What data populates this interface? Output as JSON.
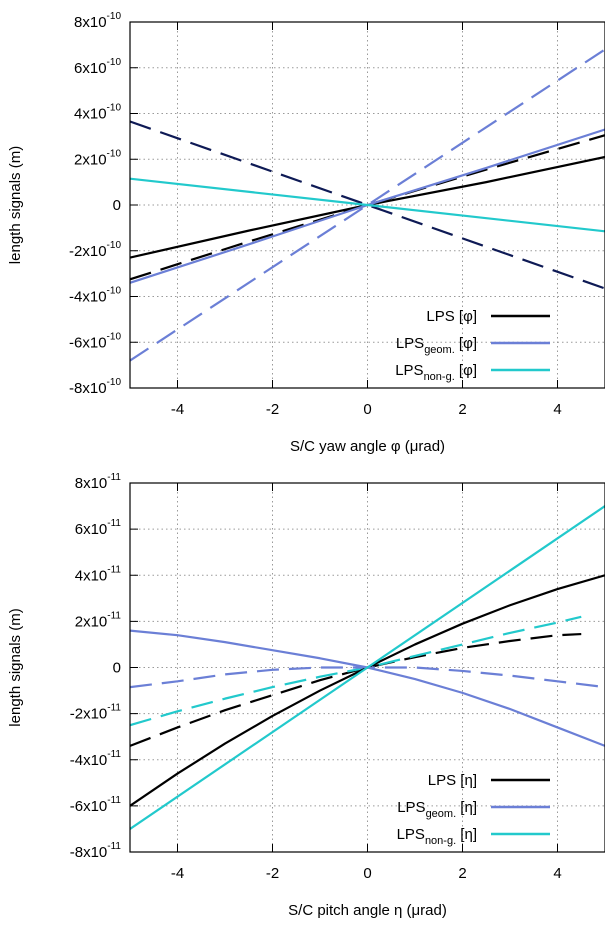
{
  "chart_data": [
    {
      "type": "line",
      "panel": "top",
      "xlabel": "S/C yaw angle φ (μrad)",
      "ylabel": "length signals (m)",
      "xlim": [
        -5,
        5
      ],
      "ylim": [
        -8e-10,
        8e-10
      ],
      "x_ticks": [
        -4,
        -2,
        0,
        2,
        4
      ],
      "x_tick_labels": [
        "-4",
        "-2",
        "0",
        "2",
        "4"
      ],
      "y_ticks": [
        -8e-10,
        -6e-10,
        -4e-10,
        -2e-10,
        0,
        2e-10,
        4e-10,
        6e-10,
        8e-10
      ],
      "y_tick_labels": [
        {
          "mant": "-8x10",
          "exp": "-10"
        },
        {
          "mant": "-6x10",
          "exp": "-10"
        },
        {
          "mant": "-4x10",
          "exp": "-10"
        },
        {
          "mant": "-2x10",
          "exp": "-10"
        },
        {
          "mant": "0",
          "exp": ""
        },
        {
          "mant": "2x10",
          "exp": "-10"
        },
        {
          "mant": "4x10",
          "exp": "-10"
        },
        {
          "mant": "6x10",
          "exp": "-10"
        },
        {
          "mant": "8x10",
          "exp": "-10"
        }
      ],
      "grid": true,
      "legend_position": "bottom-right",
      "series": [
        {
          "name": "LPS",
          "sub": "",
          "tail": " [φ]",
          "color": "#000000",
          "dash": "solid",
          "x": [
            -5,
            -2.5,
            0,
            2.5,
            5
          ],
          "y": [
            -2.3e-10,
            -1.12e-10,
            0,
            1e-10,
            2.1e-10
          ]
        },
        {
          "name": "LPS",
          "sub": "geom.",
          "tail": " [φ]",
          "color": "#6b7fd6",
          "dash": "solid",
          "x": [
            -5,
            -2.5,
            0,
            2.5,
            5
          ],
          "y": [
            -3.4e-10,
            -1.72e-10,
            0,
            1.62e-10,
            3.3e-10
          ]
        },
        {
          "name": "LPS",
          "sub": "non-g.",
          "tail": " [φ]",
          "color": "#22c9cc",
          "dash": "solid",
          "x": [
            -5,
            0,
            5
          ],
          "y": [
            1.15e-10,
            0,
            -1.15e-10
          ]
        },
        {
          "name": "",
          "color": "#000000",
          "dash": "dashed",
          "x": [
            -5,
            -2.5,
            0,
            2.5,
            5
          ],
          "y": [
            -3.25e-10,
            -1.6e-10,
            0,
            1.55e-10,
            3.05e-10
          ]
        },
        {
          "name": "",
          "color": "#6b7fd6",
          "dash": "dashed",
          "x": [
            -5,
            0,
            5
          ],
          "y": [
            -6.8e-10,
            0,
            6.8e-10
          ]
        },
        {
          "name": "",
          "color": "#0e1a55",
          "dash": "dashed",
          "x": [
            -5,
            0,
            5
          ],
          "y": [
            3.65e-10,
            0,
            -3.65e-10
          ]
        }
      ]
    },
    {
      "type": "line",
      "panel": "bottom",
      "xlabel": "S/C pitch angle η (μrad)",
      "ylabel": "length signals (m)",
      "xlim": [
        -5,
        5
      ],
      "ylim": [
        -8e-11,
        8e-11
      ],
      "x_ticks": [
        -4,
        -2,
        0,
        2,
        4
      ],
      "x_tick_labels": [
        "-4",
        "-2",
        "0",
        "2",
        "4"
      ],
      "y_ticks": [
        -8e-11,
        -6e-11,
        -4e-11,
        -2e-11,
        0,
        2e-11,
        4e-11,
        6e-11,
        8e-11
      ],
      "y_tick_labels": [
        {
          "mant": "-8x10",
          "exp": "-11"
        },
        {
          "mant": "-6x10",
          "exp": "-11"
        },
        {
          "mant": "-4x10",
          "exp": "-11"
        },
        {
          "mant": "-2x10",
          "exp": "-11"
        },
        {
          "mant": "0",
          "exp": ""
        },
        {
          "mant": "2x10",
          "exp": "-11"
        },
        {
          "mant": "4x10",
          "exp": "-11"
        },
        {
          "mant": "6x10",
          "exp": "-11"
        },
        {
          "mant": "8x10",
          "exp": "-11"
        }
      ],
      "grid": true,
      "legend_position": "bottom-right",
      "series": [
        {
          "name": "LPS",
          "sub": "",
          "tail": " [η]",
          "color": "#000000",
          "dash": "solid",
          "x": [
            -5,
            -4,
            -3,
            -2,
            -1,
            0,
            1,
            2,
            3,
            4,
            5
          ],
          "y": [
            -6e-11,
            -4.6e-11,
            -3.3e-11,
            -2.1e-11,
            -1e-11,
            0,
            1e-11,
            1.9e-11,
            2.7e-11,
            3.4e-11,
            4e-11
          ]
        },
        {
          "name": "LPS",
          "sub": "geom.",
          "tail": " [η]",
          "color": "#6b7fd6",
          "dash": "solid",
          "x": [
            -5,
            -4,
            -3,
            -2,
            -1,
            0,
            1,
            2,
            3,
            4,
            5
          ],
          "y": [
            1.6e-11,
            1.4e-11,
            1.1e-11,
            7.5e-12,
            4e-12,
            0,
            -5e-12,
            -1.1e-11,
            -1.8e-11,
            -2.6e-11,
            -3.4e-11
          ]
        },
        {
          "name": "LPS",
          "sub": "non-g.",
          "tail": " [η]",
          "color": "#22c9cc",
          "dash": "solid",
          "x": [
            -5,
            0,
            5
          ],
          "y": [
            -7e-11,
            0,
            7e-11
          ]
        },
        {
          "name": "",
          "color": "#000000",
          "dash": "dashed",
          "x": [
            -5,
            -4,
            -3,
            -2,
            -1,
            0,
            1,
            2,
            3,
            4,
            4.5
          ],
          "y": [
            -3.4e-11,
            -2.6e-11,
            -1.85e-11,
            -1.2e-11,
            -5.5e-12,
            0,
            4.5e-12,
            8.5e-12,
            1.15e-11,
            1.4e-11,
            1.45e-11
          ]
        },
        {
          "name": "",
          "color": "#22c9cc",
          "dash": "dashed",
          "x": [
            -5,
            -4,
            -3,
            -2,
            -1,
            0,
            1,
            2,
            3,
            4,
            4.5
          ],
          "y": [
            -2.5e-11,
            -1.9e-11,
            -1.35e-11,
            -8.5e-12,
            -4e-12,
            0,
            5e-12,
            1e-11,
            1.5e-11,
            1.95e-11,
            2.2e-11
          ]
        },
        {
          "name": "",
          "color": "#6b7fd6",
          "dash": "dashed",
          "x": [
            -5,
            -4,
            -3,
            -2,
            -1,
            0,
            1,
            2,
            3,
            4,
            5
          ],
          "y": [
            -8.5e-12,
            -6e-12,
            -3e-12,
            -1e-12,
            0,
            0,
            0,
            -1.5e-12,
            -3.5e-12,
            -6e-12,
            -8.5e-12
          ]
        }
      ]
    }
  ]
}
